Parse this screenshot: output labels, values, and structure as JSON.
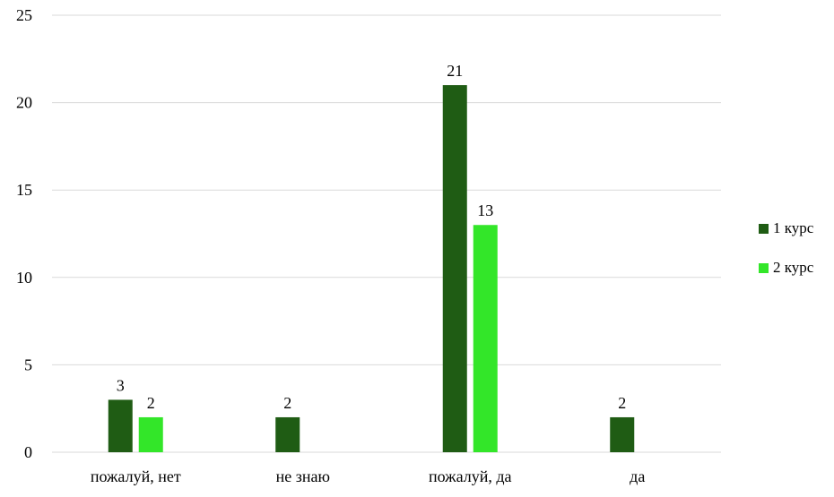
{
  "chart_data": {
    "type": "bar",
    "title": "",
    "xlabel": "",
    "ylabel": "",
    "categories": [
      "пожалуй, нет",
      "не знаю",
      "пожалуй, да",
      "да"
    ],
    "y_ticks": [
      "0",
      "5",
      "10",
      "15",
      "20",
      "25"
    ],
    "ylim": [
      0,
      25
    ],
    "grid": true,
    "legend_position": "right",
    "series": [
      {
        "name": "1 курс",
        "color": "#1f5c14",
        "values": [
          3,
          2,
          21,
          2
        ],
        "labels": [
          "3",
          "2",
          "21",
          "2"
        ]
      },
      {
        "name": "2 курс",
        "color": "#33e629",
        "values": [
          2,
          null,
          13,
          null
        ],
        "labels": [
          "2",
          "",
          "13",
          ""
        ]
      }
    ]
  }
}
